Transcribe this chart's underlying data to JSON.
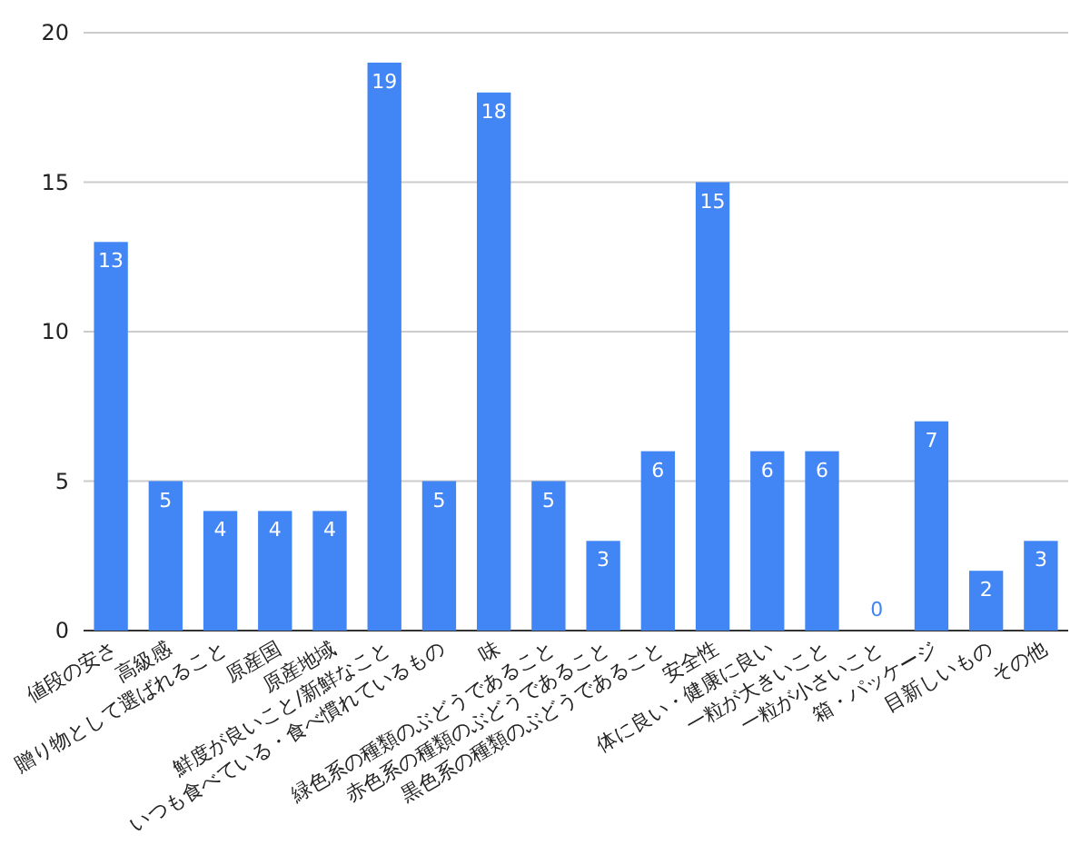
{
  "chart_data": {
    "type": "bar",
    "categories": [
      "値段の安さ",
      "高級感",
      "贈り物として選ばれること",
      "原産国",
      "原産地域",
      "鮮度が良いこと/新鮮なこと",
      "いつも食べている・食べ慣れているもの",
      "味",
      "緑色系の種類のぶどうであること",
      "赤色系の種類のぶどうであること",
      "黒色系の種類のぶどうであること",
      "安全性",
      "体に良い・健康に良い",
      "一粒が大きいこと",
      "一粒が小さいこと",
      "箱・パッケージ",
      "目新しいもの",
      "その他"
    ],
    "values": [
      13,
      5,
      4,
      4,
      4,
      19,
      5,
      18,
      5,
      3,
      6,
      15,
      6,
      6,
      0,
      7,
      2,
      3
    ],
    "color": "#4285f4",
    "ylim": [
      0,
      20
    ],
    "yticks": [
      0,
      5,
      10,
      15,
      20
    ],
    "grid": "y",
    "data_labels": true
  }
}
